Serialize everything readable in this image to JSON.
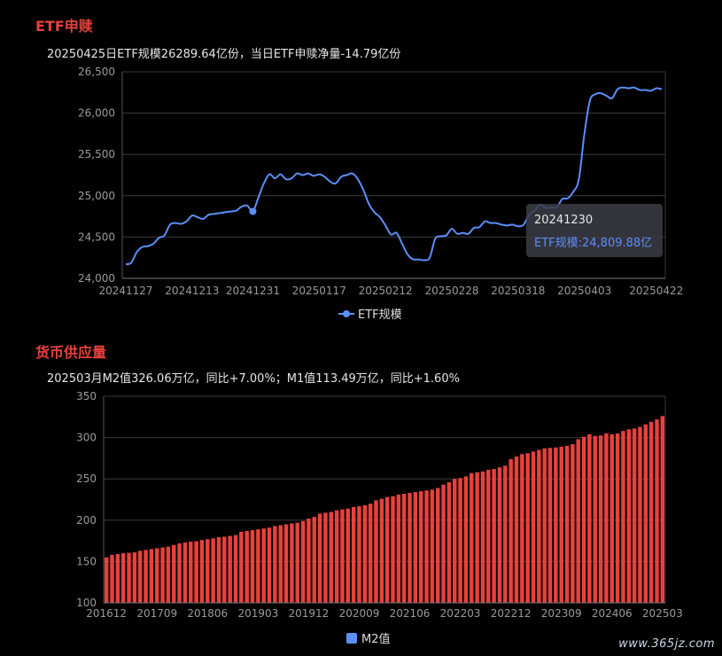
{
  "etf_section": {
    "title": "ETF申赎",
    "summary": "20250425日ETF规模26289.64亿份，当日ETF申赎净量-14.79亿份",
    "tooltip": {
      "date": "20241230",
      "text": "ETF规模:24,809.88亿"
    }
  },
  "money_section": {
    "title": "货币供应量",
    "summary": "202503月M2值326.06万亿，同比+7.00%；M1值113.49万亿，同比+1.60%"
  },
  "watermark": "www.365jz.com",
  "colors": {
    "line": "#5b8ff9",
    "bar": "#e8413c",
    "title": "#e8413c"
  },
  "chart_data": [
    {
      "type": "line",
      "series_name": "ETF规模",
      "legend_label": "ETF规模",
      "ylim": [
        24000,
        26500
      ],
      "yticks": [
        24000,
        24500,
        25000,
        25500,
        26000,
        26500
      ],
      "ytick_labels": [
        "24,000",
        "24,500",
        "25,000",
        "25,500",
        "26,000",
        "26,500"
      ],
      "xtick_labels": [
        "20241127",
        "20241213",
        "20241231",
        "20250117",
        "20250212",
        "20250228",
        "20250318",
        "20250403",
        "20250422"
      ],
      "xtick_index": [
        0,
        12,
        23,
        35,
        47,
        59,
        71,
        83,
        96
      ],
      "highlight_index": 23,
      "values": [
        24170,
        24190,
        24320,
        24380,
        24390,
        24420,
        24490,
        24520,
        24650,
        24670,
        24660,
        24690,
        24760,
        24740,
        24720,
        24770,
        24780,
        24790,
        24800,
        24810,
        24820,
        24870,
        24880,
        24810,
        24980,
        25150,
        25260,
        25210,
        25260,
        25200,
        25210,
        25270,
        25250,
        25270,
        25240,
        25260,
        25230,
        25170,
        25150,
        25230,
        25250,
        25270,
        25200,
        25070,
        24900,
        24800,
        24740,
        24640,
        24530,
        24550,
        24420,
        24290,
        24230,
        24230,
        24220,
        24250,
        24480,
        24510,
        24520,
        24600,
        24540,
        24550,
        24540,
        24610,
        24620,
        24690,
        24670,
        24670,
        24650,
        24640,
        24650,
        24630,
        24650,
        24770,
        24820,
        24890,
        24850,
        24860,
        24860,
        24960,
        24970,
        25050,
        25200,
        25750,
        26150,
        26230,
        26240,
        26210,
        26180,
        26290,
        26310,
        26300,
        26310,
        26280,
        26280,
        26270,
        26300,
        26290
      ]
    },
    {
      "type": "bar",
      "series_name": "M2值",
      "legend_label": "M2值",
      "ylim": [
        100,
        350
      ],
      "yticks": [
        100,
        150,
        200,
        250,
        300,
        350
      ],
      "ytick_labels": [
        "100",
        "150",
        "200",
        "250",
        "300",
        "350"
      ],
      "xtick_labels": [
        "201612",
        "201709",
        "201806",
        "201903",
        "201912",
        "202009",
        "202106",
        "202203",
        "202212",
        "202309",
        "202406",
        "202503"
      ],
      "xtick_index": [
        0,
        9,
        18,
        27,
        36,
        45,
        54,
        63,
        72,
        81,
        90,
        99
      ],
      "start_month": "201612",
      "values": [
        155.0,
        158.0,
        159.0,
        160.0,
        160.5,
        161.0,
        163.0,
        164.0,
        165.0,
        166.0,
        167.0,
        168.0,
        170.0,
        172.0,
        173.0,
        174.0,
        174.5,
        176.0,
        177.0,
        178.0,
        179.5,
        180.0,
        181.0,
        182.0,
        186.0,
        187.0,
        188.0,
        189.0,
        190.0,
        191.0,
        193.0,
        194.0,
        195.0,
        196.0,
        197.0,
        199.0,
        202.0,
        204.0,
        208.0,
        209.0,
        210.0,
        212.0,
        213.0,
        214.0,
        216.0,
        217.0,
        218.0,
        220.0,
        224.0,
        226.0,
        228.0,
        229.0,
        231.0,
        232.0,
        233.0,
        234.0,
        235.0,
        236.0,
        237.0,
        239.0,
        243.0,
        246.0,
        250.0,
        251.0,
        253.0,
        257.0,
        258.0,
        259.0,
        261.0,
        262.0,
        264.0,
        266.0,
        274.0,
        277.0,
        280.0,
        281.0,
        283.0,
        285.0,
        287.0,
        287.5,
        288.0,
        289.0,
        290.0,
        292.0,
        298.0,
        301.0,
        304.0,
        302.0,
        302.5,
        305.0,
        304.0,
        305.0,
        308.0,
        310.0,
        311.0,
        313.0,
        316.0,
        319.0,
        322.0,
        326.06
      ]
    }
  ]
}
